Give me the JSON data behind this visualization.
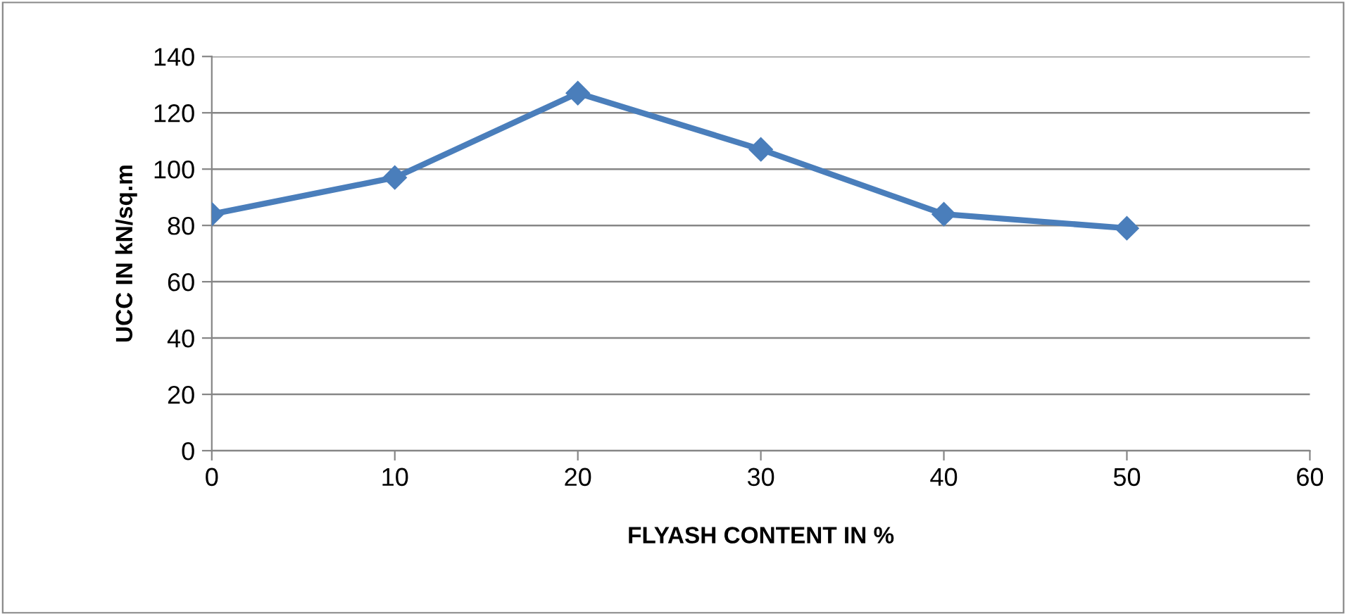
{
  "chart_data": {
    "type": "line",
    "xlabel": "FLYASH CONTENT IN %",
    "ylabel": "UCC IN kN/sq.m",
    "x": [
      0,
      10,
      20,
      30,
      40,
      50
    ],
    "series": [
      {
        "color": "#4a7ebb",
        "values": [
          84,
          97,
          127,
          107,
          84,
          79
        ]
      }
    ],
    "xlim": [
      0,
      60
    ],
    "xticks": [
      0,
      10,
      20,
      30,
      40,
      50,
      60
    ],
    "ylim": [
      0,
      140
    ],
    "yticks": [
      0,
      20,
      40,
      60,
      80,
      100,
      120,
      140
    ],
    "grid": "y",
    "marker": "diamond",
    "line_style": "solid",
    "legend": false
  }
}
